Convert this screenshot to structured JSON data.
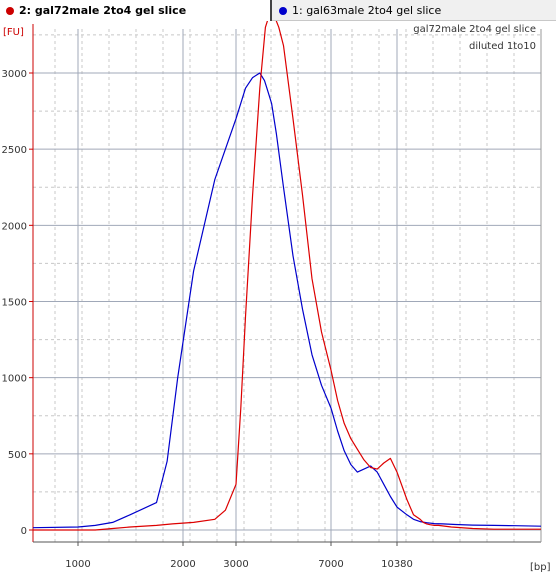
{
  "tabs": [
    {
      "label": "2: gal72male 2to4 gel slice",
      "color": "#cc0000",
      "active": true
    },
    {
      "label": "1: gal63male 2to4 gel slice",
      "color": "#0000cc",
      "active": false
    }
  ],
  "chart_data": {
    "type": "line",
    "ylabel": "[FU]",
    "xlabel": "[bp]",
    "annotation_line1": "gal72male 2to4 gel slice",
    "annotation_line2": "diluted 1to10",
    "x_ticks": [
      "1000",
      "2000",
      "3000",
      "7000",
      "10380"
    ],
    "y_ticks": [
      "0",
      "500",
      "1000",
      "1500",
      "2000",
      "2500",
      "3000"
    ],
    "ylim": [
      -100,
      3400
    ],
    "grid": true,
    "series": [
      {
        "name": "2: gal72male 2to4 gel slice",
        "color": "#dd0000",
        "x_sample": [
          -0.5,
          0.0,
          0.5,
          1.0,
          1.5,
          2.0,
          2.3,
          2.6,
          2.8,
          2.9,
          3.0,
          3.1,
          3.2,
          3.35,
          3.5,
          3.62,
          3.72,
          3.8,
          3.9,
          4.0,
          4.2,
          4.4,
          4.6,
          4.8,
          5.0,
          5.2,
          5.4,
          5.6,
          5.8,
          6.0,
          6.2,
          6.4,
          6.6,
          6.8,
          7.0,
          7.3,
          7.5,
          7.7,
          7.8,
          7.9,
          8.0,
          8.1,
          8.2,
          8.5,
          9.0,
          9.5,
          10.0,
          10.6
        ],
        "values": [
          0,
          0,
          0,
          10,
          20,
          30,
          40,
          50,
          70,
          130,
          300,
          800,
          1400,
          2200,
          2900,
          3300,
          3400,
          3380,
          3300,
          3180,
          2700,
          2200,
          1650,
          1300,
          1050,
          850,
          700,
          600,
          530,
          460,
          410,
          400,
          440,
          470,
          380,
          200,
          100,
          70,
          50,
          40,
          35,
          30,
          30,
          20,
          10,
          5,
          5,
          5
        ]
      },
      {
        "name": "1: gal63male 2to4 gel slice",
        "color": "#0000cc",
        "x_sample": [
          -0.5,
          0.0,
          0.5,
          1.0,
          1.5,
          2.0,
          2.2,
          2.4,
          2.6,
          2.8,
          3.0,
          3.2,
          3.35,
          3.5,
          3.6,
          3.65,
          3.7,
          3.75,
          3.85,
          4.0,
          4.2,
          4.4,
          4.6,
          4.8,
          5.0,
          5.2,
          5.4,
          5.6,
          5.8,
          6.0,
          6.2,
          6.4,
          6.6,
          6.8,
          7.0,
          7.3,
          7.5,
          7.7,
          7.9,
          8.1,
          8.3,
          8.6,
          9.0,
          9.5,
          10.0,
          10.6
        ],
        "values": [
          15,
          20,
          30,
          50,
          100,
          180,
          450,
          1000,
          1700,
          2300,
          2700,
          2900,
          2970,
          3000,
          2950,
          2900,
          2850,
          2800,
          2600,
          2250,
          1800,
          1450,
          1150,
          950,
          800,
          650,
          520,
          430,
          380,
          400,
          420,
          380,
          300,
          220,
          150,
          100,
          70,
          55,
          48,
          42,
          40,
          36,
          32,
          30,
          28,
          25
        ]
      }
    ]
  }
}
